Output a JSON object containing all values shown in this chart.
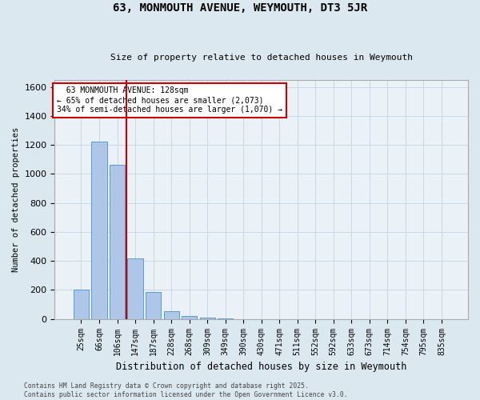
{
  "title": "63, MONMOUTH AVENUE, WEYMOUTH, DT3 5JR",
  "subtitle": "Size of property relative to detached houses in Weymouth",
  "xlabel": "Distribution of detached houses by size in Weymouth",
  "ylabel": "Number of detached properties",
  "categories": [
    "25sqm",
    "66sqm",
    "106sqm",
    "147sqm",
    "187sqm",
    "228sqm",
    "268sqm",
    "309sqm",
    "349sqm",
    "390sqm",
    "430sqm",
    "471sqm",
    "511sqm",
    "552sqm",
    "592sqm",
    "633sqm",
    "673sqm",
    "714sqm",
    "754sqm",
    "795sqm",
    "835sqm"
  ],
  "values": [
    200,
    1225,
    1065,
    415,
    185,
    55,
    20,
    8,
    3,
    0,
    0,
    0,
    0,
    0,
    0,
    0,
    0,
    0,
    0,
    0,
    0
  ],
  "bar_color": "#aec6e8",
  "bar_edge_color": "#5b9bd5",
  "red_line_x": 2.5,
  "annotation_text": "  63 MONMOUTH AVENUE: 128sqm\n← 65% of detached houses are smaller (2,073)\n34% of semi-detached houses are larger (1,070) →",
  "annotation_box_color": "#ffffff",
  "annotation_box_edge_color": "#cc0000",
  "red_line_color": "#cc0000",
  "grid_color": "#c8d8e8",
  "background_color": "#dce8f0",
  "plot_bg_color": "#eaf2f8",
  "footer_line1": "Contains HM Land Registry data © Crown copyright and database right 2025.",
  "footer_line2": "Contains public sector information licensed under the Open Government Licence v3.0.",
  "ylim": [
    0,
    1650
  ],
  "yticks": [
    0,
    200,
    400,
    600,
    800,
    1000,
    1200,
    1400,
    1600
  ]
}
